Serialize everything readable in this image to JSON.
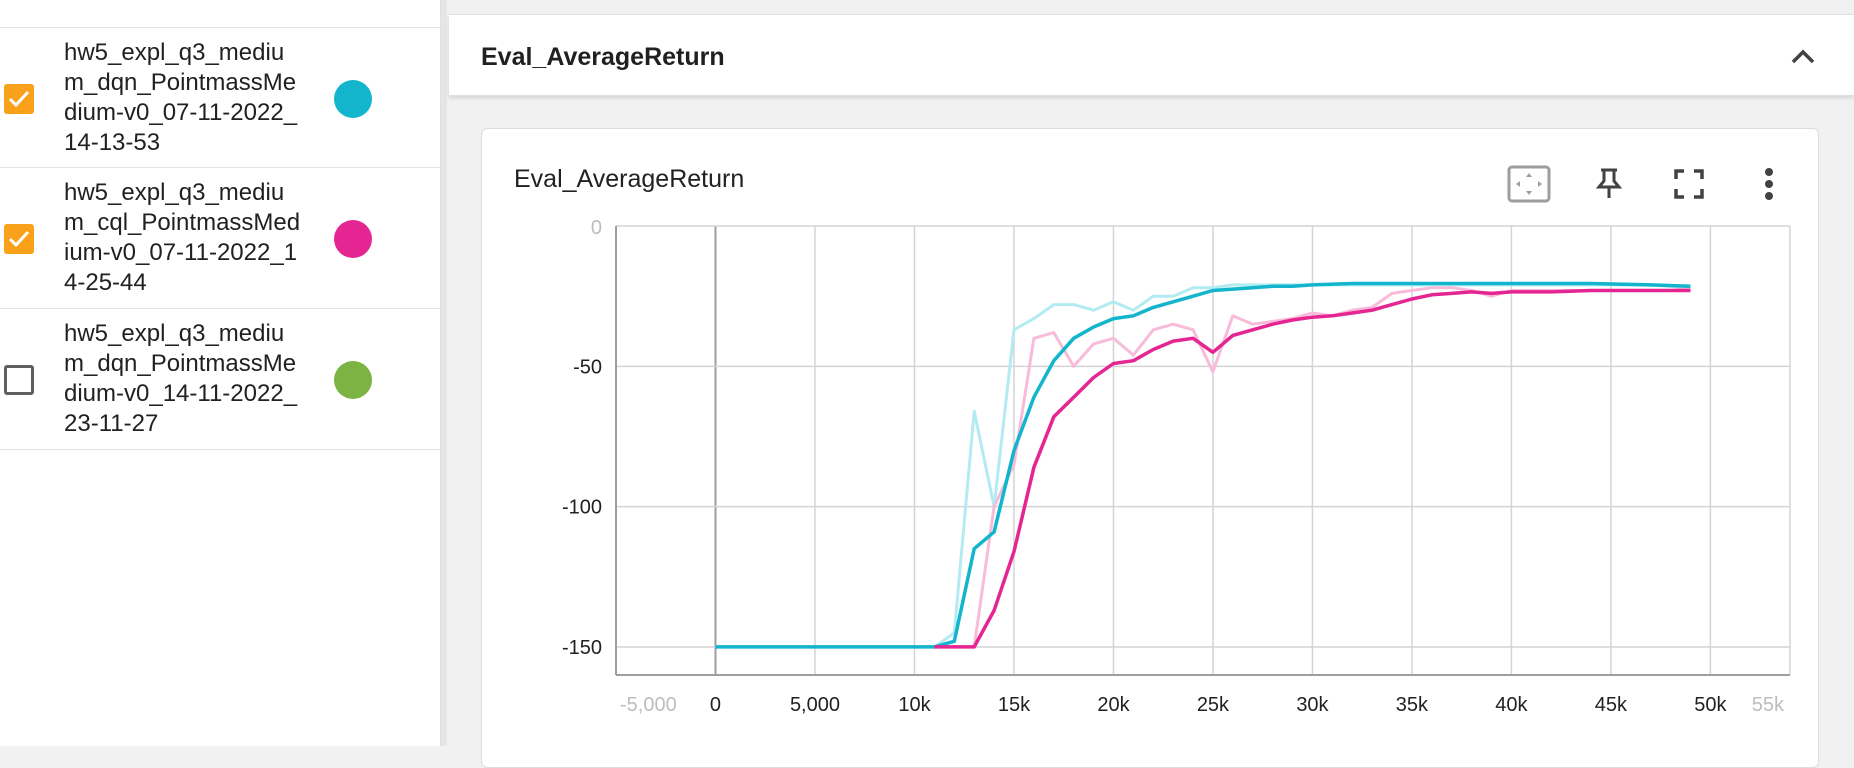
{
  "runs": [
    {
      "name": "hw5_expl_q3_medium_dqn_PointmassMedium-v0_07-11-2022_14-13-53",
      "checked": true,
      "color": "#12b5cb"
    },
    {
      "name": "hw5_expl_q3_medium_cql_PointmassMedium-v0_07-11-2022_14-25-44",
      "checked": true,
      "color": "#e52592"
    },
    {
      "name": "hw5_expl_q3_medium_dqn_PointmassMedium-v0_14-11-2022_23-11-27",
      "checked": false,
      "color": "#7cb342"
    }
  ],
  "section": {
    "title": "Eval_AverageReturn",
    "toggle_icon": "chevron-up-icon"
  },
  "card": {
    "title": "Eval_AverageReturn",
    "toolbar_icons": [
      "fit-domain-icon",
      "pin-icon",
      "fullscreen-icon",
      "more-vert-icon"
    ]
  },
  "chart_data": {
    "type": "line",
    "title": "Eval_AverageReturn",
    "xlabel": "",
    "ylabel": "",
    "xlim": [
      -5000,
      54000
    ],
    "ylim": [
      -160,
      0
    ],
    "grid": true,
    "x_ticks": [
      "-5,000",
      "0",
      "5,000",
      "10k",
      "15k",
      "20k",
      "25k",
      "30k",
      "35k",
      "40k",
      "45k",
      "50k",
      "55k"
    ],
    "x_tick_values": [
      -5000,
      0,
      5000,
      10000,
      15000,
      20000,
      25000,
      30000,
      35000,
      40000,
      45000,
      50000,
      55000
    ],
    "y_ticks": [
      "-150",
      "-100",
      "-50",
      "0"
    ],
    "y_tick_values": [
      -150,
      -100,
      -50,
      0
    ],
    "series": [
      {
        "run_index": 0,
        "raw_color": "#b2ebf2",
        "color": "#12b5cb",
        "x": [
          0,
          11000,
          12000,
          13000,
          14000,
          15000,
          16000,
          17000,
          18000,
          19000,
          20000,
          21000,
          22000,
          23000,
          24000,
          25000,
          26000,
          27000,
          28000,
          29000,
          30000,
          32000,
          35000,
          38000,
          40000,
          44000,
          47000,
          49000
        ],
        "raw": [
          -150,
          -150,
          -145,
          -66,
          -100,
          -37,
          -33,
          -28,
          -28,
          -30,
          -27,
          -30,
          -25,
          -25,
          -22,
          -22,
          -21,
          -21,
          -21,
          -21,
          -21,
          -21,
          -21,
          -21,
          -21,
          -21,
          -21,
          -22
        ],
        "smoothed": [
          -150,
          -150,
          -148,
          -115,
          -109,
          -80,
          -61,
          -48,
          -40,
          -36,
          -33,
          -32,
          -29,
          -27,
          -25,
          -23,
          -22.5,
          -22,
          -21.5,
          -21.5,
          -21,
          -20.5,
          -20.5,
          -20.5,
          -20.5,
          -20.5,
          -21,
          -21.5
        ]
      },
      {
        "run_index": 1,
        "raw_color": "#f8bbd9",
        "color": "#e52592",
        "x": [
          11000,
          12000,
          13000,
          14000,
          15000,
          16000,
          17000,
          18000,
          19000,
          20000,
          21000,
          22000,
          23000,
          24000,
          25000,
          26000,
          27000,
          28000,
          29000,
          30000,
          31000,
          32000,
          33000,
          34000,
          35000,
          36000,
          37000,
          38000,
          39000,
          40000,
          42000,
          44000,
          46000,
          48000,
          49000
        ],
        "raw": [
          -150,
          -150,
          -150,
          -100,
          -85,
          -40,
          -38,
          -50,
          -42,
          -40,
          -46,
          -37,
          -35,
          -37,
          -52,
          -32,
          -35,
          -34,
          -33,
          -31,
          -32,
          -30,
          -29,
          -24,
          -23,
          -22,
          -22,
          -23,
          -25,
          -23,
          -23,
          -23,
          -23,
          -23,
          -22
        ],
        "smoothed": [
          -150,
          -150,
          -150,
          -137,
          -116,
          -86,
          -68,
          -61,
          -54,
          -49,
          -48,
          -44,
          -41,
          -40,
          -45,
          -39,
          -37,
          -35,
          -33.5,
          -32.5,
          -32,
          -31,
          -30,
          -28,
          -26,
          -24.5,
          -24,
          -23.5,
          -24,
          -23.5,
          -23.5,
          -23,
          -23,
          -23,
          -23
        ]
      }
    ]
  }
}
